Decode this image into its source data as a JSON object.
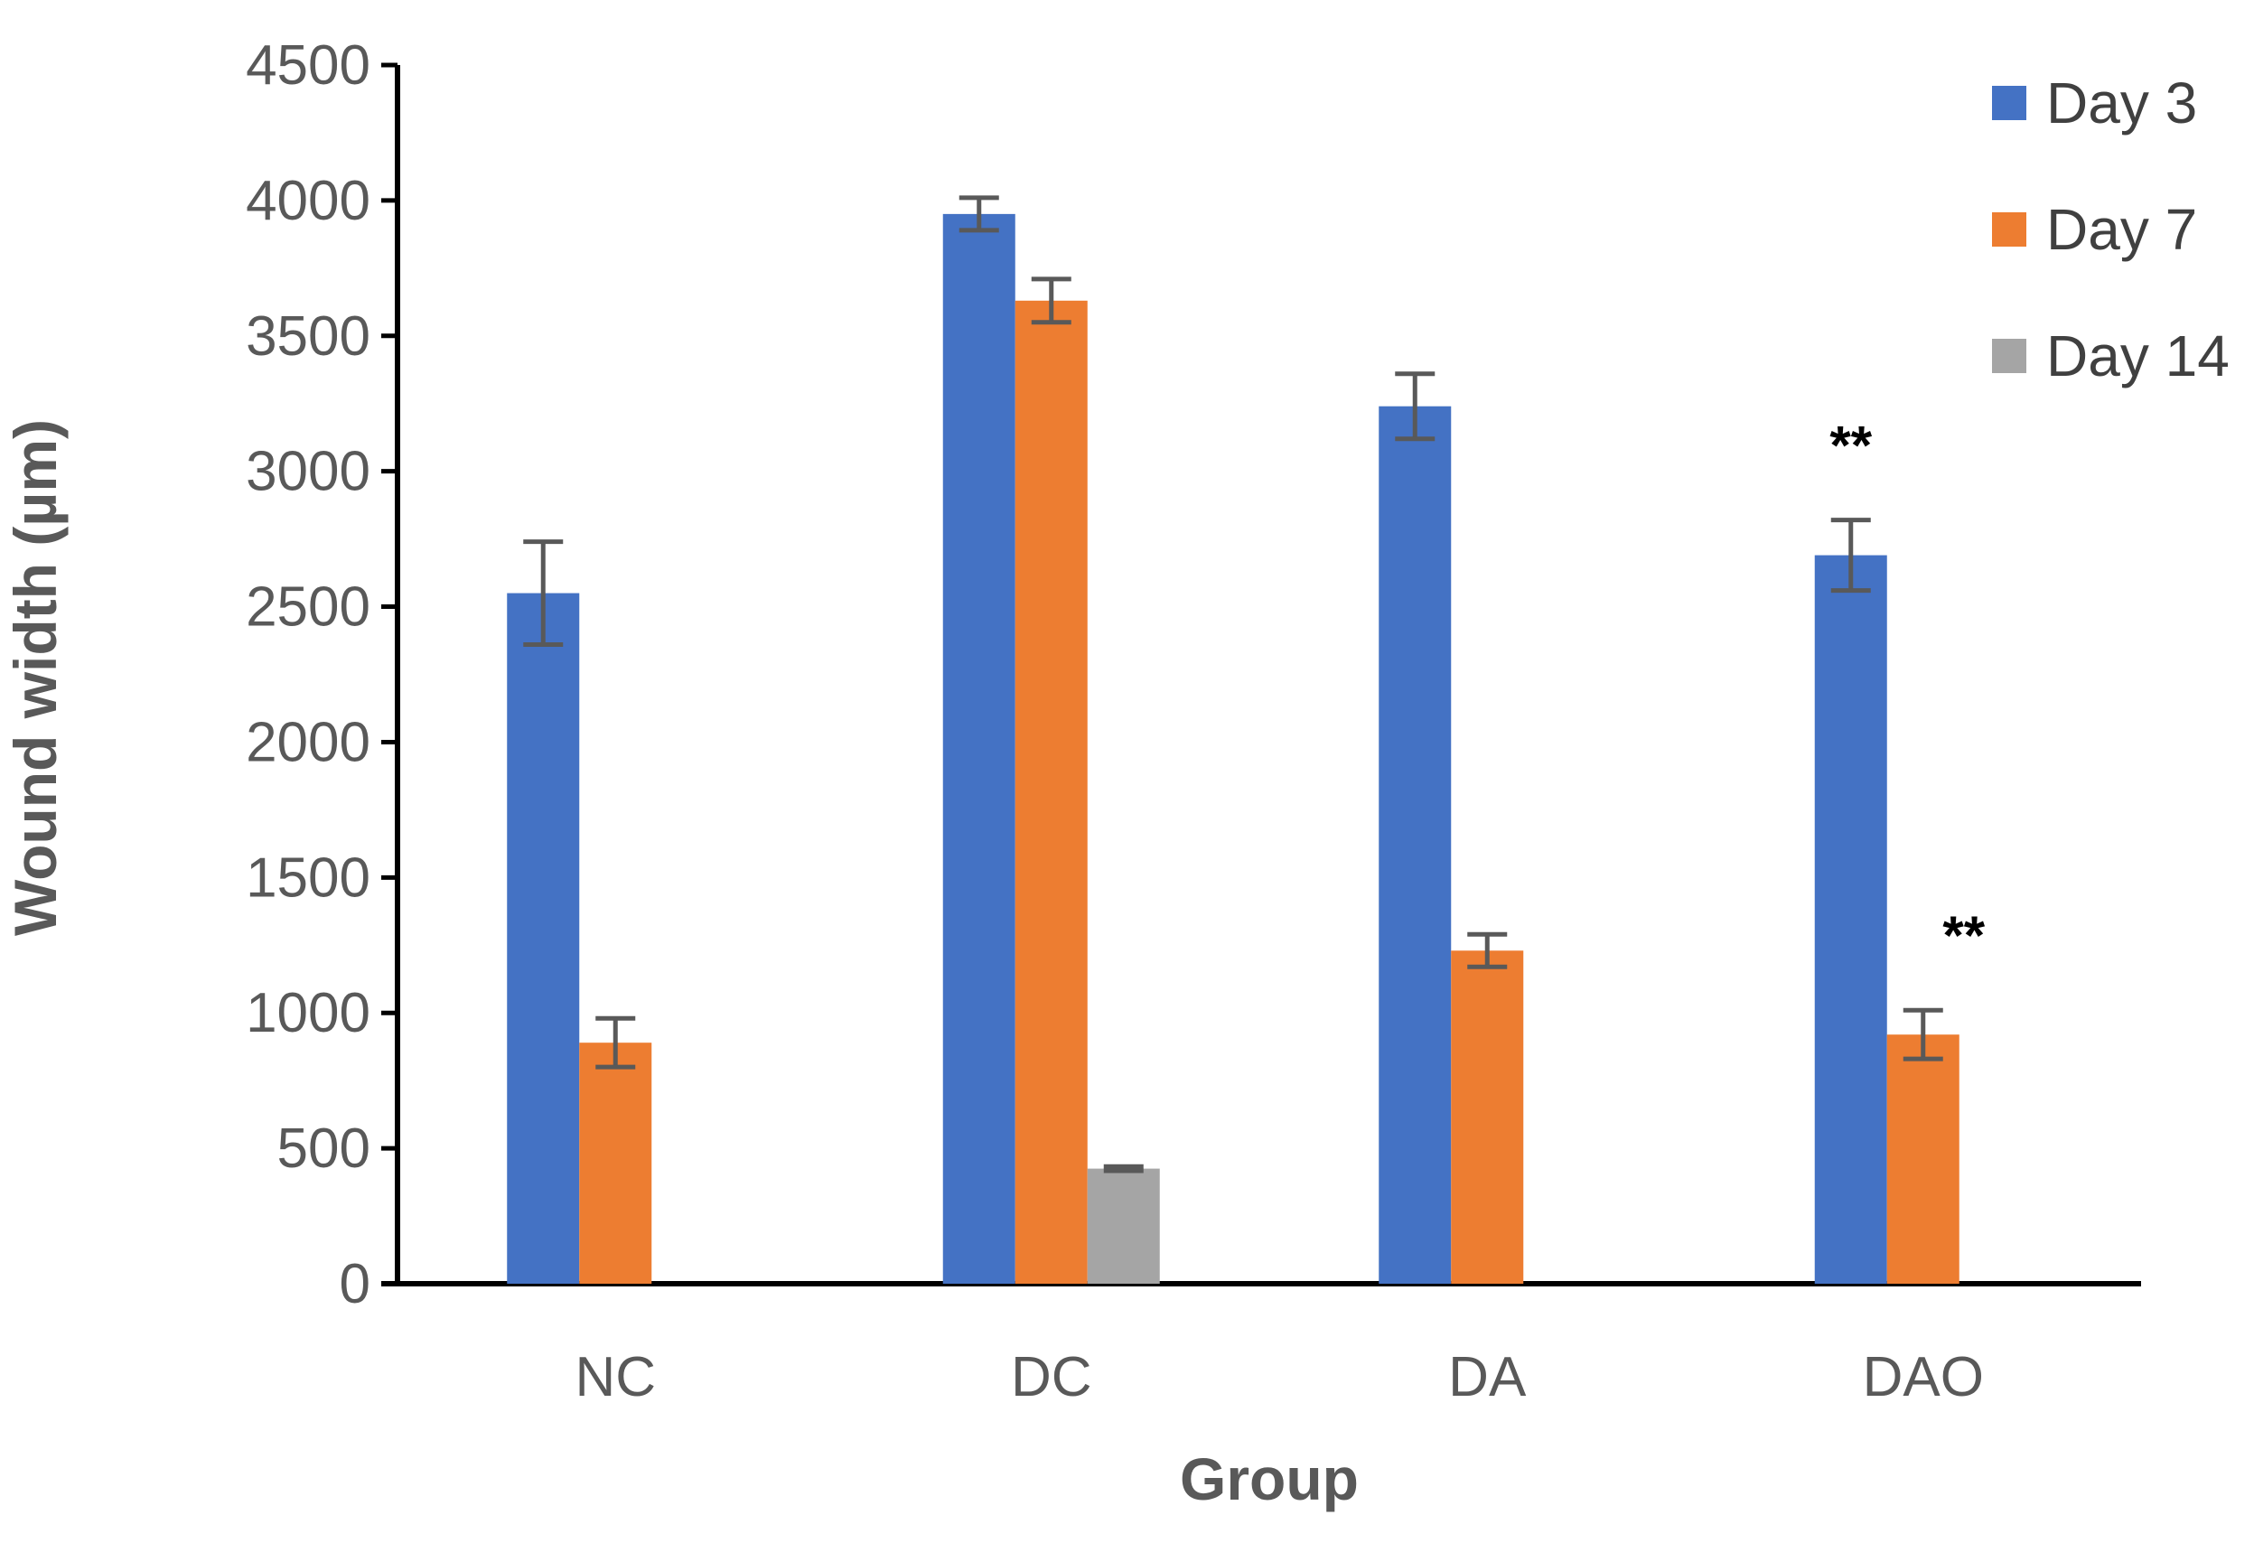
{
  "chart_data": {
    "type": "bar",
    "title": "",
    "xlabel": "Group",
    "ylabel": "Wound width (µm)",
    "ylim": [
      0,
      4500
    ],
    "yticks": [
      0,
      500,
      1000,
      1500,
      2000,
      2500,
      3000,
      3500,
      4000,
      4500
    ],
    "grid": false,
    "legend_position": "top-right",
    "categories": [
      "NC",
      "DC",
      "DA",
      "DAO"
    ],
    "series": [
      {
        "name": "Day 3",
        "color": "#4472C4",
        "values": [
          2550,
          3950,
          3240,
          2690
        ],
        "errors": [
          190,
          60,
          120,
          130
        ]
      },
      {
        "name": "Day 7",
        "color": "#ED7D31",
        "values": [
          890,
          3630,
          1230,
          920
        ],
        "errors": [
          90,
          80,
          60,
          90
        ]
      },
      {
        "name": "Day 14",
        "color": "#A5A5A5",
        "values": [
          null,
          425,
          null,
          null
        ],
        "errors": [
          null,
          8,
          null,
          null
        ]
      }
    ],
    "annotations": [
      {
        "text": "**",
        "category": "DAO",
        "series": "Day 3"
      },
      {
        "text": "**",
        "category": "DAO",
        "series": "Day 7"
      }
    ]
  }
}
